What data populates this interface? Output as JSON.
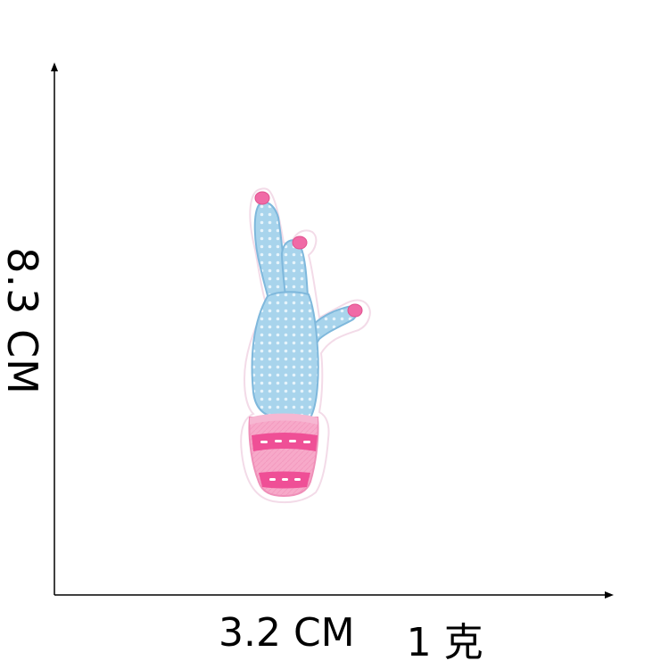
{
  "labels": {
    "height": "8.3 CM",
    "width": "3.2 CM",
    "weight": "1 克"
  },
  "product": {
    "subject": "cactus-in-pot-embroidered-patch",
    "colors": {
      "cactus": "#a8d4ec",
      "cactus_stitch": "#7fb8dc",
      "flower": "#f06aa6",
      "pot": "#f7a9c9",
      "pot_band": "#ef4f96",
      "backing": "#ffffff",
      "backing_edge": "#f3dbe8"
    }
  },
  "axes": {
    "color": "#000000"
  }
}
